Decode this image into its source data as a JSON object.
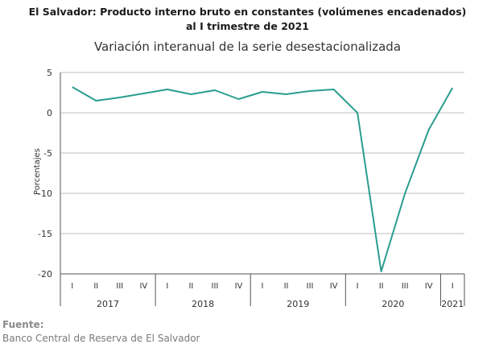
{
  "header": {
    "title_line1": "El Salvador: Producto interno bruto en constantes (volúmenes encadenados)",
    "title_line2": "al I trimestre de 2021",
    "subtitle": "Variación interanual de la serie desestacionalizada"
  },
  "source": {
    "label": "Fuente:",
    "text": "Banco Central de Reserva de El Salvador"
  },
  "colors": {
    "line": "#2a9d8f",
    "axis": "#555555",
    "grid": "#bfbfbf",
    "text": "#333333"
  },
  "chart_data": {
    "type": "line",
    "ylabel": "Porcentajes",
    "ylim": [
      -20,
      5
    ],
    "yticks": [
      5,
      0,
      -5,
      -10,
      -15,
      -20
    ],
    "grid": true,
    "categories": [
      "I",
      "II",
      "III",
      "IV",
      "I",
      "II",
      "III",
      "IV",
      "I",
      "II",
      "III",
      "IV",
      "I",
      "II",
      "III",
      "IV",
      "I"
    ],
    "year_groups": [
      {
        "label": "2017",
        "count": 4
      },
      {
        "label": "2018",
        "count": 4
      },
      {
        "label": "2019",
        "count": 4
      },
      {
        "label": "2020",
        "count": 4
      },
      {
        "label": "2021",
        "count": 1
      }
    ],
    "series": [
      {
        "values": [
          3.2,
          1.5,
          1.9,
          2.4,
          2.9,
          2.3,
          2.8,
          1.7,
          2.6,
          2.3,
          2.7,
          2.9,
          0.0,
          -19.7,
          -10.0,
          -2.1,
          3.1
        ]
      }
    ]
  }
}
